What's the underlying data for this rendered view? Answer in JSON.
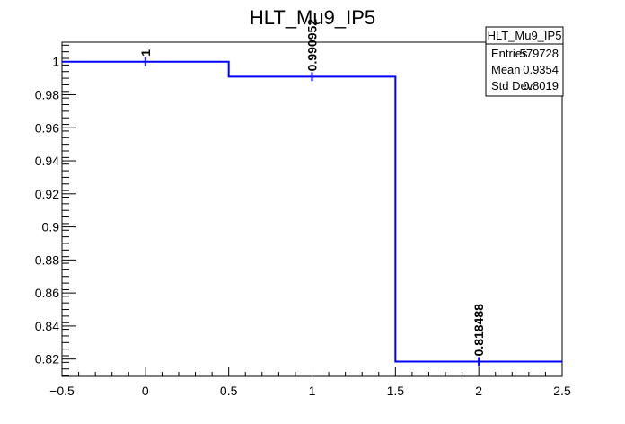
{
  "chart_data": {
    "type": "histogram",
    "title": "HLT_Mu9_IP5",
    "xlabel": "",
    "ylabel": "",
    "xlim": [
      -0.5,
      2.5
    ],
    "ylim": [
      0.8095,
      1.0118
    ],
    "bin_edges": [
      -0.5,
      0.5,
      1.5,
      2.5
    ],
    "bin_centers": [
      0,
      1,
      2
    ],
    "values": [
      1,
      0.990952,
      0.818488
    ],
    "value_labels": [
      "1",
      "0.990952",
      "0.818488"
    ],
    "x_ticks": [
      -0.5,
      0,
      0.5,
      1,
      1.5,
      2,
      2.5
    ],
    "x_tick_labels": [
      "−0.5",
      "0",
      "0.5",
      "1",
      "1.5",
      "2",
      "2.5"
    ],
    "y_ticks": [
      0.82,
      0.84,
      0.86,
      0.88,
      0.9,
      0.92,
      0.94,
      0.96,
      0.98,
      1
    ],
    "y_tick_labels": [
      "0.82",
      "0.84",
      "0.86",
      "0.88",
      "0.9",
      "0.92",
      "0.94",
      "0.96",
      "0.98",
      "1"
    ],
    "line_color": "#0000ff",
    "stats_box": {
      "title": "HLT_Mu9_IP5",
      "rows": [
        {
          "label": "Entries",
          "value": "579728"
        },
        {
          "label": "Mean",
          "value": "0.9354"
        },
        {
          "label": "Std Dev",
          "value": "0.8019"
        }
      ]
    }
  }
}
